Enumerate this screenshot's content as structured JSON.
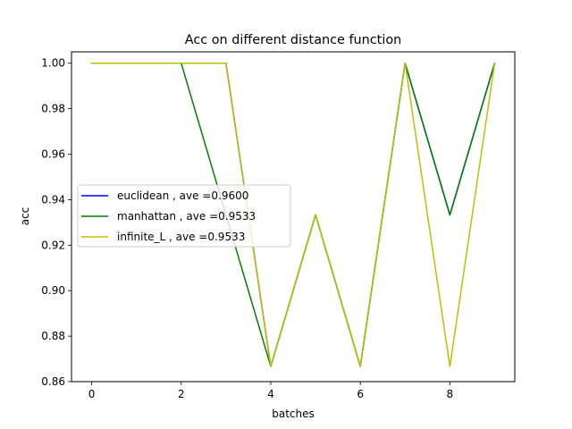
{
  "chart_data": {
    "type": "line",
    "title": "Acc on different distance function",
    "xlabel": "batches",
    "ylabel": "acc",
    "x": [
      0,
      1,
      2,
      3,
      4,
      5,
      6,
      7,
      8,
      9
    ],
    "xlim": [
      -0.45,
      9.45
    ],
    "ylim": [
      0.86,
      1.005
    ],
    "xticks": [
      0,
      2,
      4,
      6,
      8
    ],
    "yticks": [
      0.86,
      0.88,
      0.9,
      0.92,
      0.94,
      0.96,
      0.98,
      1.0
    ],
    "ytick_labels": [
      "0.86",
      "0.88",
      "0.90",
      "0.92",
      "0.94",
      "0.96",
      "0.98",
      "1.00"
    ],
    "grid": false,
    "legend_position": "center-left",
    "series": [
      {
        "name": "euclidean , ave =0.9600",
        "color": "#0000ff",
        "values": [
          1.0,
          1.0,
          1.0,
          1.0,
          0.8667,
          0.9333,
          0.8667,
          1.0,
          0.9333,
          1.0
        ]
      },
      {
        "name": "manhattan , ave =0.9533",
        "color": "#008000",
        "values": [
          1.0,
          1.0,
          1.0,
          0.9333,
          0.8667,
          0.9333,
          0.8667,
          1.0,
          0.9333,
          1.0
        ]
      },
      {
        "name": "infinite_L , ave =0.9533",
        "color": "#bfbf00",
        "values": [
          1.0,
          1.0,
          1.0,
          1.0,
          0.8667,
          0.9333,
          0.8667,
          1.0,
          0.8667,
          1.0
        ]
      }
    ]
  }
}
